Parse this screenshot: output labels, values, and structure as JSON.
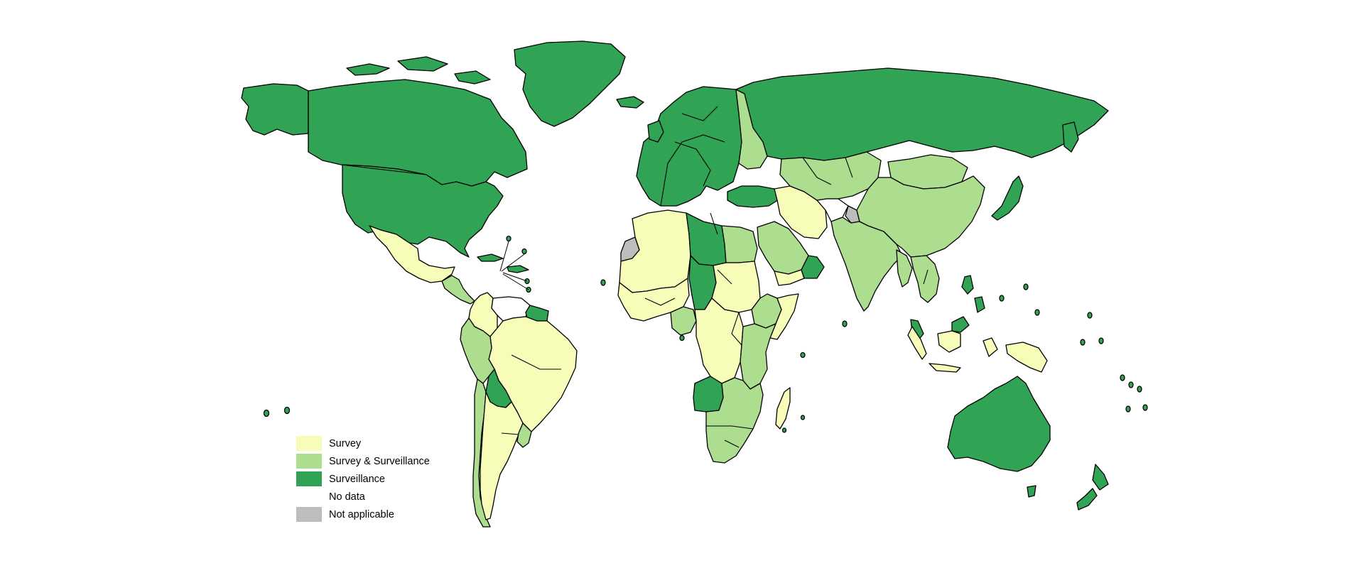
{
  "map": {
    "type": "choropleth",
    "projection": "world",
    "border_color": "#000000",
    "background": "#ffffff"
  },
  "legend": {
    "placement": "bottom-left",
    "items": [
      {
        "label": "Survey",
        "color": "#f7fcb9"
      },
      {
        "label": "Survey & Surveillance",
        "color": "#addd8e"
      },
      {
        "label": "Surveillance",
        "color": "#31a354"
      },
      {
        "label": "No data",
        "color": "#ffffff"
      },
      {
        "label": "Not applicable",
        "color": "#bdbdbd"
      }
    ]
  },
  "regions": [
    {
      "name": "Canada",
      "category": "Surveillance"
    },
    {
      "name": "Alaska",
      "category": "Surveillance"
    },
    {
      "name": "Greenland",
      "category": "Surveillance"
    },
    {
      "name": "United States",
      "category": "Surveillance"
    },
    {
      "name": "Mexico",
      "category": "Survey"
    },
    {
      "name": "Central America",
      "category": "Survey & Surveillance"
    },
    {
      "name": "Caribbean",
      "category": "Surveillance"
    },
    {
      "name": "Colombia",
      "category": "Survey"
    },
    {
      "name": "Venezuela",
      "category": "No data"
    },
    {
      "name": "Guianas",
      "category": "Surveillance"
    },
    {
      "name": "Brazil",
      "category": "Survey"
    },
    {
      "name": "Peru",
      "category": "Survey & Surveillance"
    },
    {
      "name": "Bolivia",
      "category": "Surveillance"
    },
    {
      "name": "Chile",
      "category": "Survey & Surveillance"
    },
    {
      "name": "Argentina",
      "category": "Survey"
    },
    {
      "name": "Uruguay",
      "category": "Survey & Surveillance"
    },
    {
      "name": "Iceland",
      "category": "Surveillance"
    },
    {
      "name": "Europe",
      "category": "Surveillance"
    },
    {
      "name": "Eastern Europe",
      "category": "Survey & Surveillance"
    },
    {
      "name": "Turkey",
      "category": "Surveillance"
    },
    {
      "name": "Russia",
      "category": "Surveillance"
    },
    {
      "name": "Western Sahara",
      "category": "Not applicable"
    },
    {
      "name": "North-West Africa",
      "category": "Survey"
    },
    {
      "name": "Libya",
      "category": "Surveillance"
    },
    {
      "name": "Egypt",
      "category": "Survey & Surveillance"
    },
    {
      "name": "Chad",
      "category": "Surveillance"
    },
    {
      "name": "Sudan",
      "category": "Survey"
    },
    {
      "name": "West Africa",
      "category": "Survey"
    },
    {
      "name": "Nigeria",
      "category": "Survey & Surveillance"
    },
    {
      "name": "Central Africa",
      "category": "Survey"
    },
    {
      "name": "Horn of Africa",
      "category": "Survey & Surveillance"
    },
    {
      "name": "Somalia",
      "category": "Survey"
    },
    {
      "name": "East Africa",
      "category": "Survey & Surveillance"
    },
    {
      "name": "Angola",
      "category": "Surveillance"
    },
    {
      "name": "Southern Africa",
      "category": "Survey & Surveillance"
    },
    {
      "name": "Madagascar",
      "category": "Survey"
    },
    {
      "name": "Saudi Arabia",
      "category": "Survey & Surveillance"
    },
    {
      "name": "Yemen",
      "category": "Survey"
    },
    {
      "name": "Oman",
      "category": "Surveillance"
    },
    {
      "name": "Iran",
      "category": "Survey"
    },
    {
      "name": "Central Asia",
      "category": "Survey & Surveillance"
    },
    {
      "name": "Afghanistan",
      "category": "No data"
    },
    {
      "name": "Kashmir",
      "category": "Not applicable"
    },
    {
      "name": "India",
      "category": "Survey & Surveillance"
    },
    {
      "name": "Mongolia",
      "category": "Survey & Surveillance"
    },
    {
      "name": "China",
      "category": "Survey & Surveillance"
    },
    {
      "name": "Japan",
      "category": "Surveillance"
    },
    {
      "name": "South-East Asia",
      "category": "Survey & Surveillance"
    },
    {
      "name": "Malaysia",
      "category": "Surveillance"
    },
    {
      "name": "Indonesia",
      "category": "Survey"
    },
    {
      "name": "Papua New Guinea",
      "category": "Survey"
    },
    {
      "name": "Philippines",
      "category": "Surveillance"
    },
    {
      "name": "Australia",
      "category": "Surveillance"
    },
    {
      "name": "New Zealand",
      "category": "Surveillance"
    },
    {
      "name": "Pacific Islands",
      "category": "Surveillance"
    }
  ]
}
